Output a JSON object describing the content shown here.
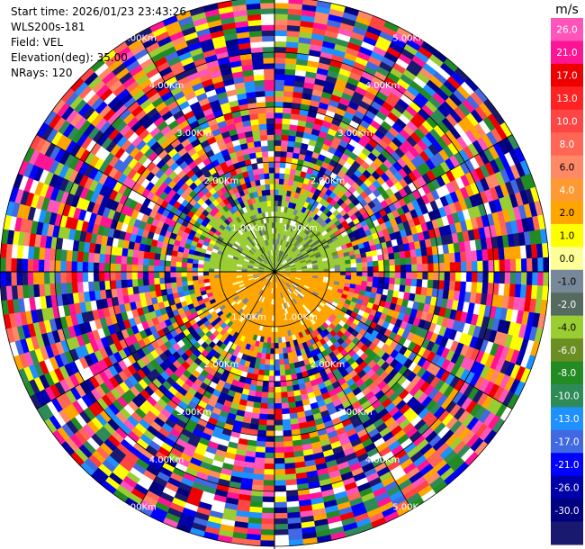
{
  "header": {
    "start_time": "Start time: 2026/01/23 23:43:26",
    "instrument": "WLS200s-181",
    "field": "Field: VEL",
    "elevation": "Elevation(deg): 35.00",
    "nrays": "NRays: 120"
  },
  "chart_data": {
    "type": "heatmap",
    "projection": "polar-ppi",
    "field": "VEL",
    "elevation_deg": 35.0,
    "n_rays": 120,
    "range_rings_km": [
      1,
      2,
      3,
      4,
      5
    ],
    "ring_labels": [
      "1.00Km",
      "2.00Km",
      "3.00Km",
      "4.00Km",
      "5.00Km"
    ],
    "max_range_km": 5.0,
    "colorbar": {
      "unit": "m/s",
      "min": -30.0,
      "max": 30.0,
      "ticks": [
        "26.0",
        "21.0",
        "17.0",
        "13.0",
        "10.0",
        "8.0",
        "6.0",
        "4.0",
        "2.0",
        "1.0",
        "0.0",
        "-1.0",
        "-2.0",
        "-4.0",
        "-6.0",
        "-8.0",
        "-10.0",
        "-13.0",
        "-17.0",
        "-21.0",
        "-26.0",
        "-30.0"
      ],
      "colors": [
        "#ff55bb",
        "#ff1493",
        "#ee0000",
        "#ff2222",
        "#ff4444",
        "#ff6655",
        "#ff8866",
        "#ff9933",
        "#ffa500",
        "#ffff00",
        "#ffff99",
        "#778899",
        "#556b5f",
        "#9acd32",
        "#6b8e23",
        "#228b22",
        "#2e8b57",
        "#1e90ff",
        "#4169e1",
        "#0000ff",
        "#0000aa",
        "#000080",
        "#191970"
      ]
    },
    "near_field": {
      "north_half_velocity_ms": -2.5,
      "south_half_velocity_ms": 3.5,
      "max_range_km": 1.3
    }
  }
}
